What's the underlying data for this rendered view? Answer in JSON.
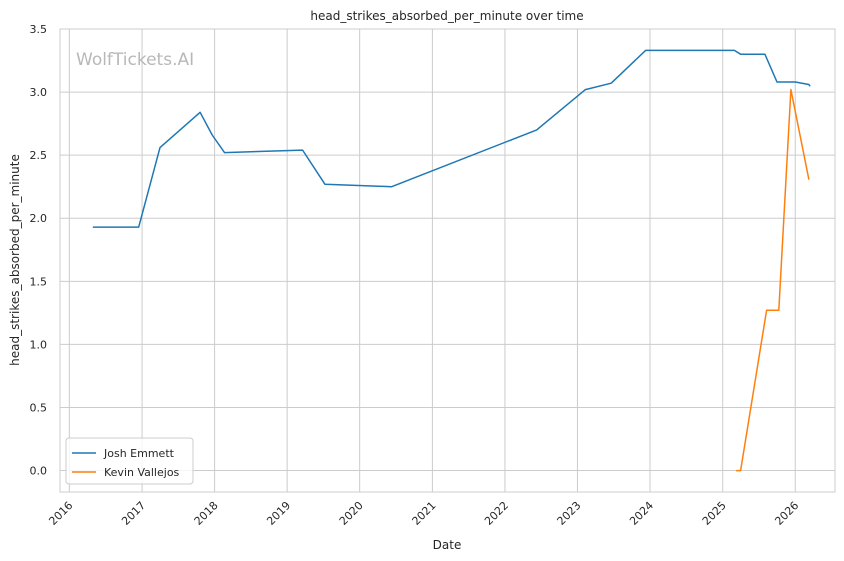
{
  "chart_data": {
    "type": "line",
    "title": "head_strikes_absorbed_per_minute over time",
    "xlabel": "Date",
    "ylabel": "head_strikes_absorbed_per_minute",
    "watermark": "WolfTickets.AI",
    "x_is_date": true,
    "xlim": [
      "2015-11-15",
      "2026-07-20"
    ],
    "ylim": [
      -0.17,
      3.5
    ],
    "x_ticks": [
      "2016",
      "2017",
      "2018",
      "2019",
      "2020",
      "2021",
      "2022",
      "2023",
      "2024",
      "2025",
      "2026"
    ],
    "y_ticks": [
      "0.0",
      "0.5",
      "1.0",
      "1.5",
      "2.0",
      "2.5",
      "3.0",
      "3.5"
    ],
    "grid": true,
    "legend_position": "lower-left",
    "series": [
      {
        "name": "Josh Emmett",
        "color": "#1f77b4",
        "points": [
          [
            "2016-05-01",
            1.93
          ],
          [
            "2016-12-15",
            1.93
          ],
          [
            "2017-04-01",
            2.56
          ],
          [
            "2017-10-20",
            2.84
          ],
          [
            "2017-12-20",
            2.66
          ],
          [
            "2018-02-20",
            2.52
          ],
          [
            "2019-03-20",
            2.54
          ],
          [
            "2019-07-10",
            2.27
          ],
          [
            "2020-06-10",
            2.25
          ],
          [
            "2022-06-10",
            2.7
          ],
          [
            "2023-02-10",
            3.02
          ],
          [
            "2023-06-20",
            3.07
          ],
          [
            "2023-12-10",
            3.33
          ],
          [
            "2025-03-01",
            3.33
          ],
          [
            "2025-04-01",
            3.3
          ],
          [
            "2025-08-01",
            3.3
          ],
          [
            "2025-10-01",
            3.08
          ],
          [
            "2026-01-01",
            3.08
          ],
          [
            "2026-03-10",
            3.06
          ],
          [
            "2026-03-15",
            3.05
          ]
        ]
      },
      {
        "name": "Kevin Vallejos",
        "color": "#ff7f0e",
        "points": [
          [
            "2025-03-12",
            0.0
          ],
          [
            "2025-04-01",
            0.0
          ],
          [
            "2025-08-10",
            1.27
          ],
          [
            "2025-10-10",
            1.27
          ],
          [
            "2025-12-10",
            3.02
          ],
          [
            "2026-03-10",
            2.31
          ]
        ]
      }
    ]
  }
}
